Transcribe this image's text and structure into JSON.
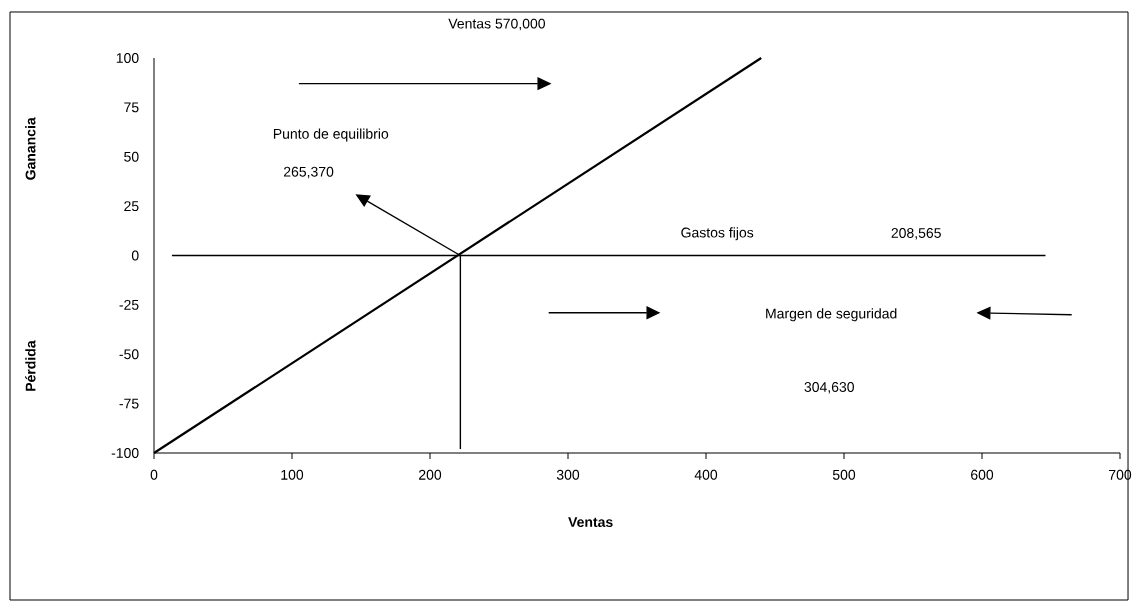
{
  "chart_data": {
    "type": "line",
    "xlabel": "Ventas",
    "xlim": [
      0,
      700
    ],
    "ylim": [
      -100,
      100
    ],
    "xticks": [
      0,
      100,
      200,
      300,
      400,
      500,
      600,
      700
    ],
    "yticks": [
      -100,
      -75,
      -50,
      -25,
      0,
      25,
      50,
      75,
      100
    ],
    "marker": "none",
    "line_style": "solid",
    "series": [
      {
        "color": "#000000",
        "x": [
          0,
          440
        ],
        "values": [
          -100,
          100
        ]
      },
      {
        "color": "#000000",
        "x": [
          13,
          646
        ],
        "values": [
          0,
          0
        ]
      },
      {
        "color": "#000000",
        "x": [
          222,
          222
        ],
        "values": [
          0,
          -98
        ]
      }
    ],
    "annotations": [
      "Ventas 570,000",
      "Ganancia",
      "Pérdida",
      "Punto de equilibrio",
      "265,370",
      "Gastos fijos",
      "208,565",
      "Margen de seguridad",
      "304,630"
    ]
  }
}
